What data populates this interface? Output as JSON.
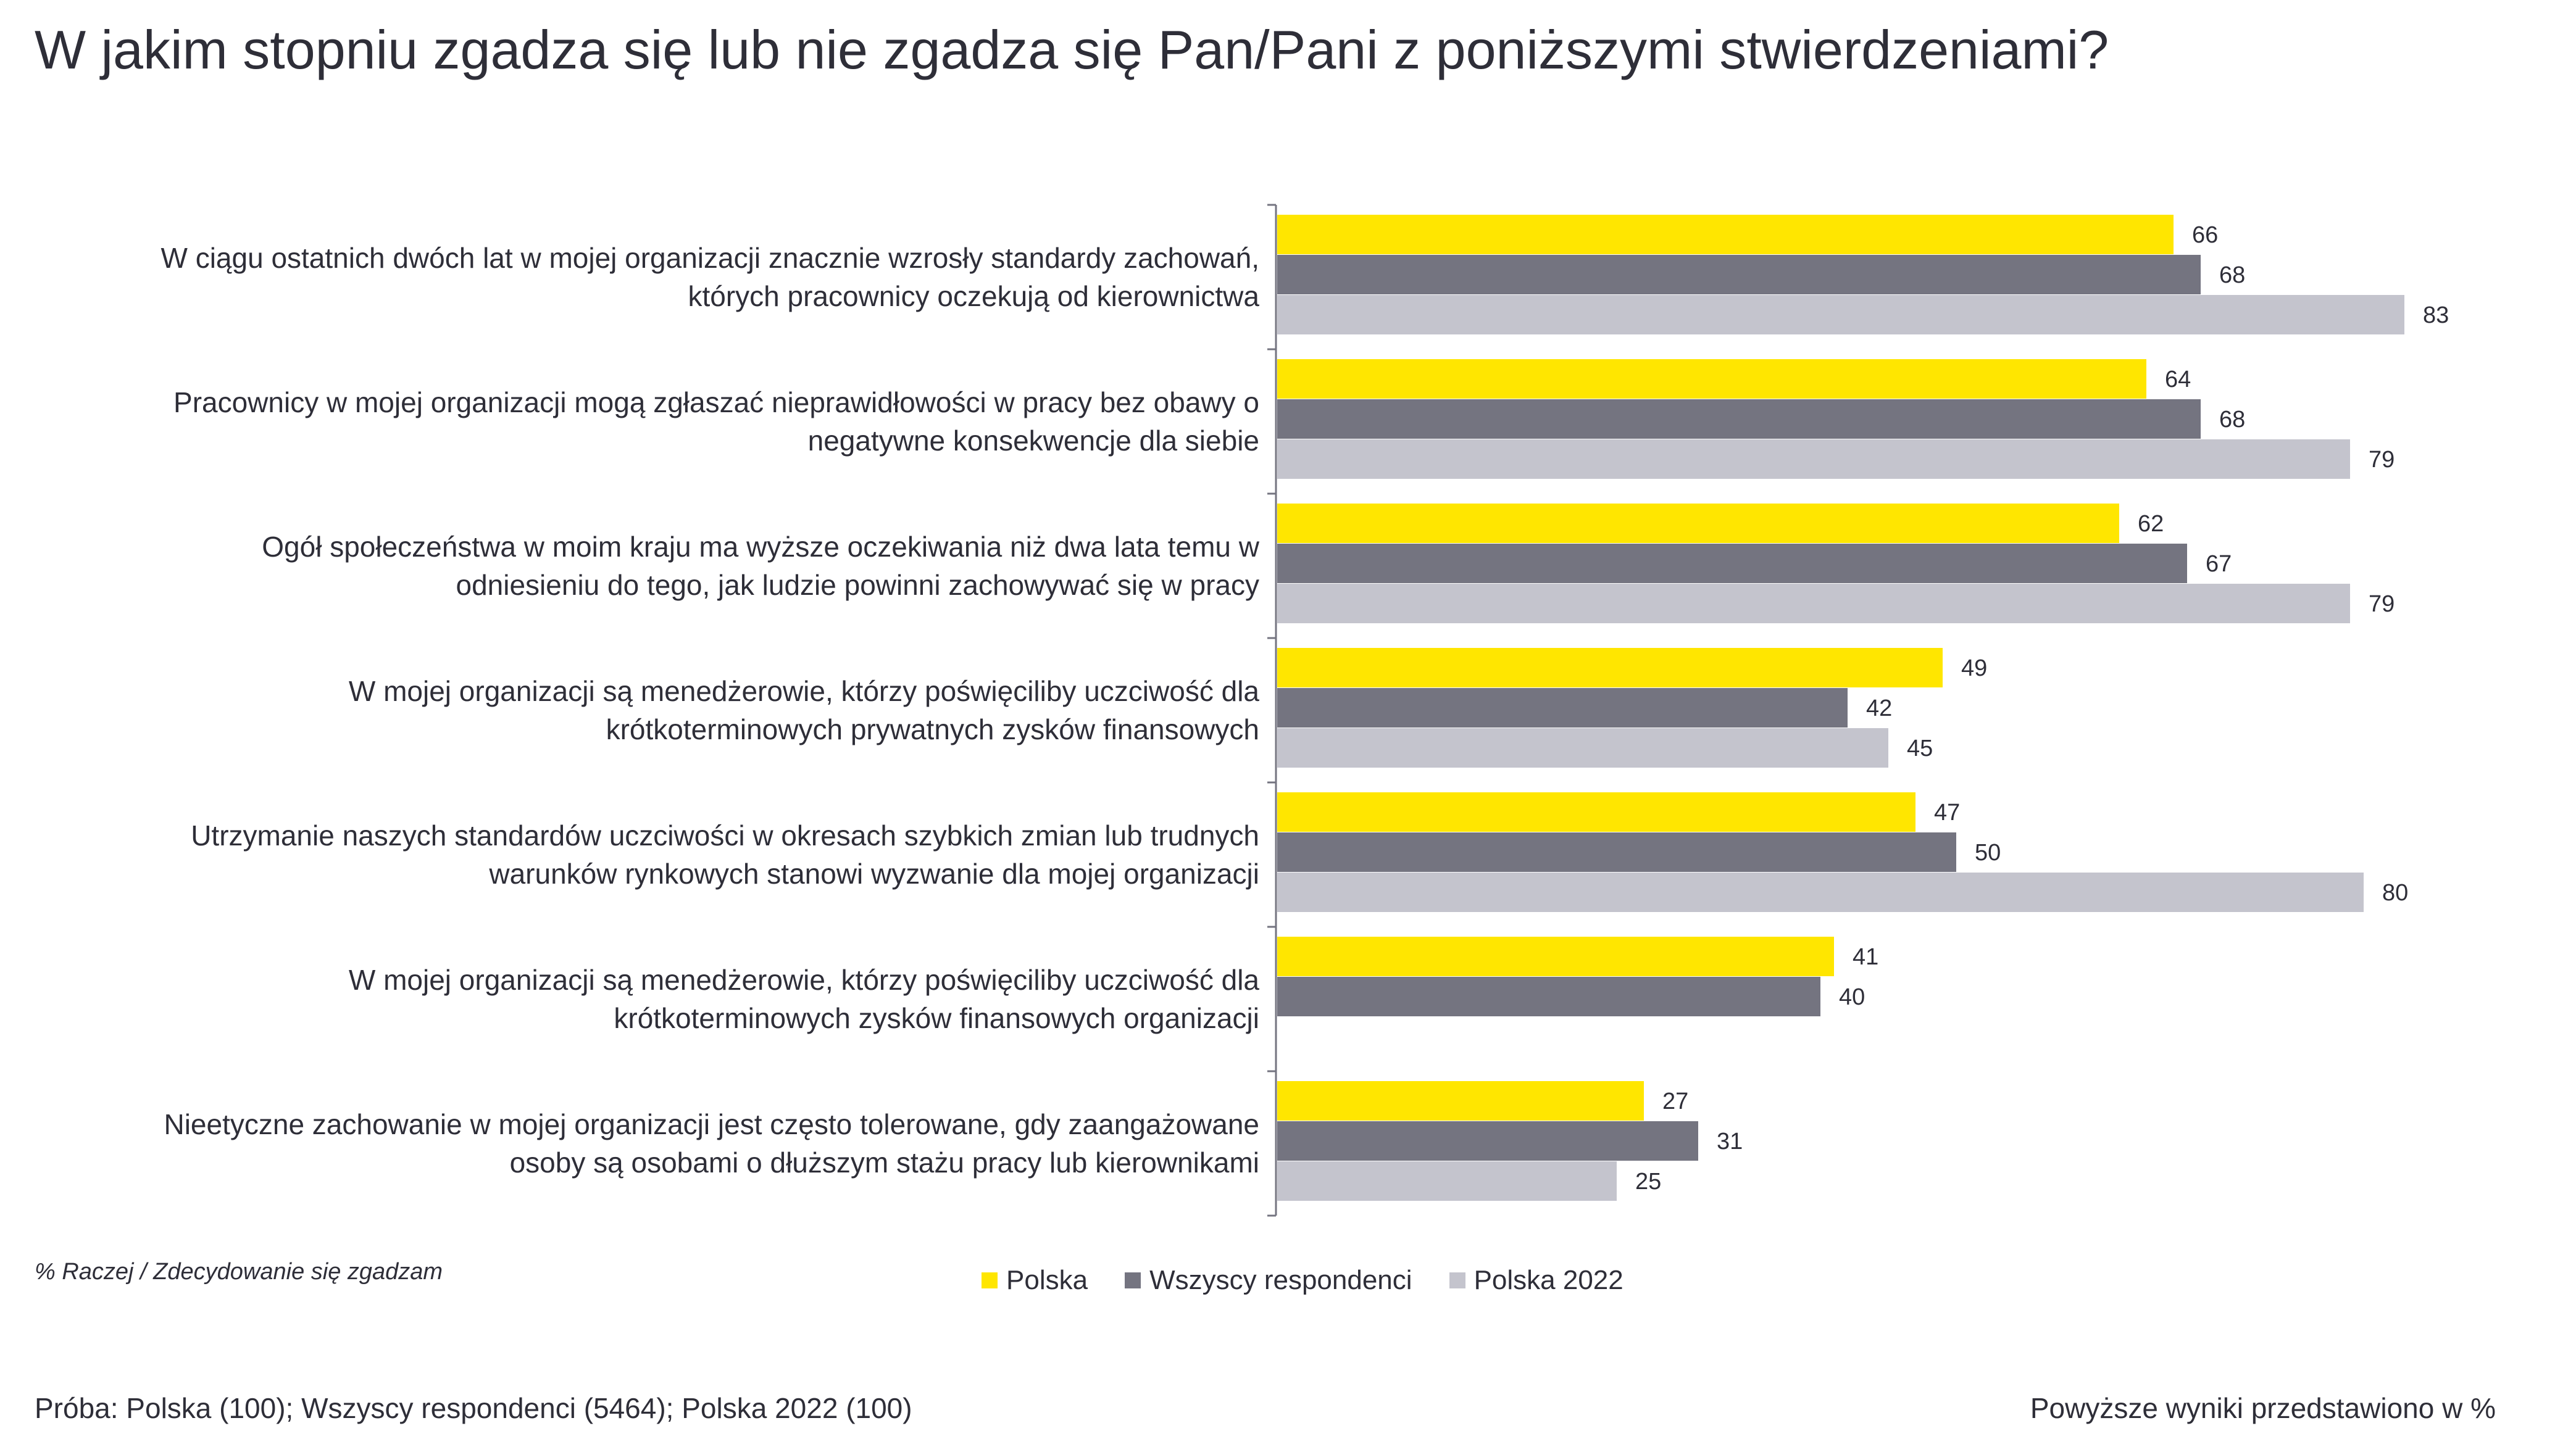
{
  "page_title": "W jakim stopniu zgadza się lub nie zgadza się Pan/Pani z poniższymi stwierdzeniami?",
  "note": "% Raczej / Zdecydowanie się zgadzam",
  "footer": {
    "sample": "Próba: Polska (100); Wszyscy respondenci (5464); Polska 2022 (100)",
    "units_note": "Powyższe wyniki przedstawiono w %"
  },
  "colors": {
    "Polska": "#ffe600",
    "Wszyscy respondenci": "#747480",
    "Polska 2022": "#c4c4cd"
  },
  "chart_data": {
    "type": "bar",
    "orientation": "horizontal",
    "grid": false,
    "legend_position": "bottom-center",
    "xlim": [
      0,
      100
    ],
    "categories": [
      "W ciągu ostatnich dwóch lat w mojej organizacji znacznie wzrosły standardy zachowań, których pracownicy oczekują od kierownictwa",
      "Pracownicy w mojej organizacji mogą zgłaszać nieprawidłowości w pracy bez obawy o negatywne konsekwencje dla siebie",
      "Ogół społeczeństwa w moim kraju ma wyższe oczekiwania niż dwa lata temu w odniesieniu do tego, jak ludzie powinni zachowywać się w pracy",
      "W mojej organizacji są menedżerowie, którzy poświęciliby uczciwość dla krótkoterminowych prywatnych zysków finansowych",
      "Utrzymanie naszych standardów uczciwości w okresach szybkich zmian lub trudnych warunków rynkowych stanowi wyzwanie dla mojej organizacji",
      "W mojej organizacji są menedżerowie, którzy poświęciliby uczciwość dla krótkoterminowych zysków finansowych organizacji",
      "Nieetyczne zachowanie w mojej organizacji jest często tolerowane, gdy zaangażowane osoby są osobami o dłuższym stażu pracy lub kierownikami"
    ],
    "category_lines": [
      [
        "W ciągu ostatnich dwóch lat w mojej organizacji znacznie wzrosły standardy zachowań,",
        "których pracownicy oczekują od kierownictwa"
      ],
      [
        "Pracownicy w mojej organizacji mogą zgłaszać nieprawidłowości w pracy bez obawy o",
        "negatywne konsekwencje dla siebie"
      ],
      [
        "Ogół społeczeństwa w moim kraju ma wyższe oczekiwania niż dwa lata temu w",
        "odniesieniu do tego, jak ludzie powinni zachowywać się w pracy"
      ],
      [
        "W mojej organizacji są menedżerowie, którzy poświęciliby uczciwość dla",
        "krótkoterminowych prywatnych zysków finansowych"
      ],
      [
        "Utrzymanie naszych standardów uczciwości w okresach szybkich zmian lub trudnych",
        "warunków rynkowych stanowi wyzwanie dla mojej organizacji"
      ],
      [
        "W mojej organizacji są menedżerowie, którzy poświęciliby uczciwość dla",
        "krótkoterminowych zysków finansowych organizacji"
      ],
      [
        "Nieetyczne zachowanie w mojej organizacji jest często tolerowane, gdy zaangażowane",
        "osoby są osobami o dłuższym stażu pracy lub kierownikami"
      ]
    ],
    "series": [
      {
        "name": "Polska",
        "values": [
          66,
          64,
          62,
          49,
          47,
          41,
          27
        ]
      },
      {
        "name": "Wszyscy respondenci",
        "values": [
          68,
          68,
          67,
          42,
          50,
          40,
          31
        ]
      },
      {
        "name": "Polska 2022",
        "values": [
          83,
          79,
          79,
          45,
          80,
          null,
          25
        ]
      }
    ]
  }
}
